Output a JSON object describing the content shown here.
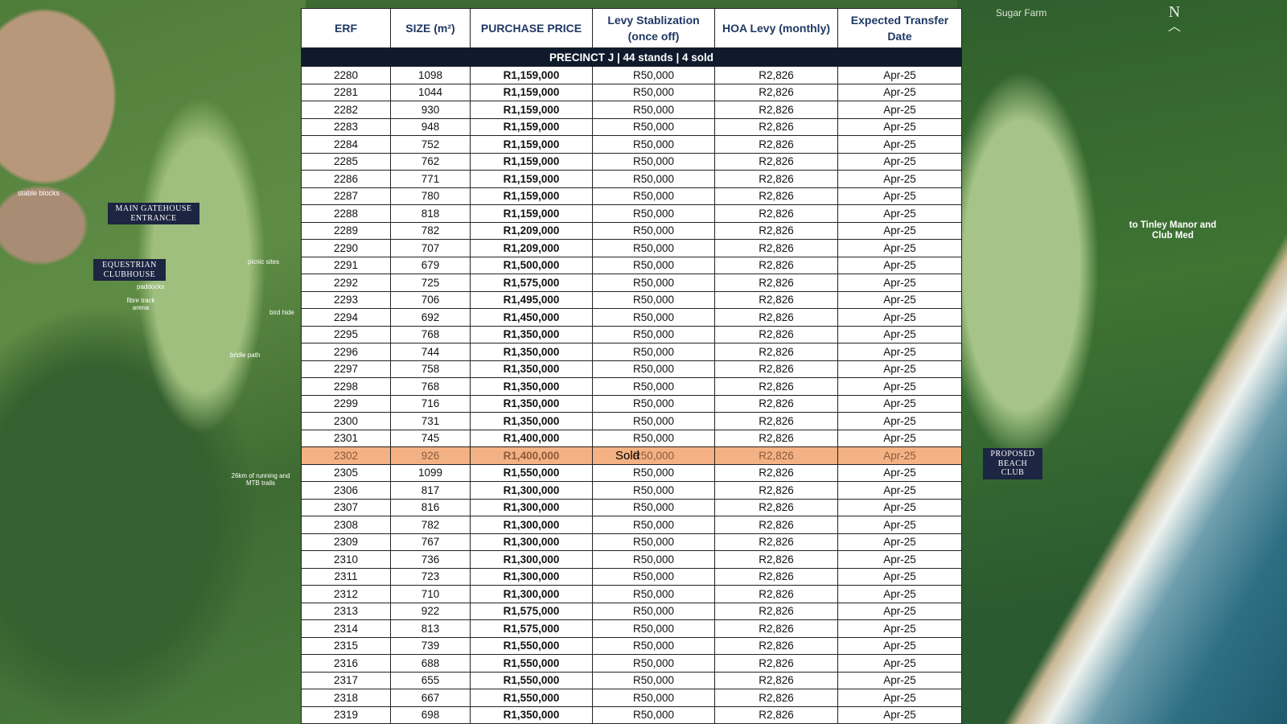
{
  "map": {
    "labels": {
      "sugar_farm": "Sugar Farm",
      "north": "N",
      "main_gatehouse": "MAIN GATEHOUSE ENTRANCE",
      "equestrian_clubhouse": "EQUESTRIAN CLUBHOUSE",
      "tinley_manor": "to Tinley Manor and Club Med",
      "proposed_beach_club": "PROPOSED BEACH CLUB",
      "stable_blocks": "stable blocks",
      "paddocks": "paddocks",
      "fibre_track_arena": "fibre track arena",
      "picnic_sites": "picnic sites",
      "bird_hide": "bird hide",
      "trails": "26km of running and MTB trails",
      "bridle_path": "bridle path"
    }
  },
  "table": {
    "headers": [
      "ERF",
      "SIZE (m²)",
      "PURCHASE PRICE",
      "Levy Stablization (once off)",
      "HOA Levy (monthly)",
      "Expected Transfer Date"
    ],
    "precinct_label": "PRECINCT J | 44 stands | 4 sold",
    "sold_label": "Sold",
    "rows": [
      {
        "erf": "2280",
        "size": "1098",
        "price": "R1,159,000",
        "levy": "R50,000",
        "hoa": "R2,826",
        "date": "Apr-25",
        "sold": false
      },
      {
        "erf": "2281",
        "size": "1044",
        "price": "R1,159,000",
        "levy": "R50,000",
        "hoa": "R2,826",
        "date": "Apr-25",
        "sold": false
      },
      {
        "erf": "2282",
        "size": "930",
        "price": "R1,159,000",
        "levy": "R50,000",
        "hoa": "R2,826",
        "date": "Apr-25",
        "sold": false
      },
      {
        "erf": "2283",
        "size": "948",
        "price": "R1,159,000",
        "levy": "R50,000",
        "hoa": "R2,826",
        "date": "Apr-25",
        "sold": false
      },
      {
        "erf": "2284",
        "size": "752",
        "price": "R1,159,000",
        "levy": "R50,000",
        "hoa": "R2,826",
        "date": "Apr-25",
        "sold": false
      },
      {
        "erf": "2285",
        "size": "762",
        "price": "R1,159,000",
        "levy": "R50,000",
        "hoa": "R2,826",
        "date": "Apr-25",
        "sold": false
      },
      {
        "erf": "2286",
        "size": "771",
        "price": "R1,159,000",
        "levy": "R50,000",
        "hoa": "R2,826",
        "date": "Apr-25",
        "sold": false
      },
      {
        "erf": "2287",
        "size": "780",
        "price": "R1,159,000",
        "levy": "R50,000",
        "hoa": "R2,826",
        "date": "Apr-25",
        "sold": false
      },
      {
        "erf": "2288",
        "size": "818",
        "price": "R1,159,000",
        "levy": "R50,000",
        "hoa": "R2,826",
        "date": "Apr-25",
        "sold": false
      },
      {
        "erf": "2289",
        "size": "782",
        "price": "R1,209,000",
        "levy": "R50,000",
        "hoa": "R2,826",
        "date": "Apr-25",
        "sold": false
      },
      {
        "erf": "2290",
        "size": "707",
        "price": "R1,209,000",
        "levy": "R50,000",
        "hoa": "R2,826",
        "date": "Apr-25",
        "sold": false
      },
      {
        "erf": "2291",
        "size": "679",
        "price": "R1,500,000",
        "levy": "R50,000",
        "hoa": "R2,826",
        "date": "Apr-25",
        "sold": false
      },
      {
        "erf": "2292",
        "size": "725",
        "price": "R1,575,000",
        "levy": "R50,000",
        "hoa": "R2,826",
        "date": "Apr-25",
        "sold": false
      },
      {
        "erf": "2293",
        "size": "706",
        "price": "R1,495,000",
        "levy": "R50,000",
        "hoa": "R2,826",
        "date": "Apr-25",
        "sold": false
      },
      {
        "erf": "2294",
        "size": "692",
        "price": "R1,450,000",
        "levy": "R50,000",
        "hoa": "R2,826",
        "date": "Apr-25",
        "sold": false
      },
      {
        "erf": "2295",
        "size": "768",
        "price": "R1,350,000",
        "levy": "R50,000",
        "hoa": "R2,826",
        "date": "Apr-25",
        "sold": false
      },
      {
        "erf": "2296",
        "size": "744",
        "price": "R1,350,000",
        "levy": "R50,000",
        "hoa": "R2,826",
        "date": "Apr-25",
        "sold": false
      },
      {
        "erf": "2297",
        "size": "758",
        "price": "R1,350,000",
        "levy": "R50,000",
        "hoa": "R2,826",
        "date": "Apr-25",
        "sold": false
      },
      {
        "erf": "2298",
        "size": "768",
        "price": "R1,350,000",
        "levy": "R50,000",
        "hoa": "R2,826",
        "date": "Apr-25",
        "sold": false
      },
      {
        "erf": "2299",
        "size": "716",
        "price": "R1,350,000",
        "levy": "R50,000",
        "hoa": "R2,826",
        "date": "Apr-25",
        "sold": false
      },
      {
        "erf": "2300",
        "size": "731",
        "price": "R1,350,000",
        "levy": "R50,000",
        "hoa": "R2,826",
        "date": "Apr-25",
        "sold": false
      },
      {
        "erf": "2301",
        "size": "745",
        "price": "R1,400,000",
        "levy": "R50,000",
        "hoa": "R2,826",
        "date": "Apr-25",
        "sold": false
      },
      {
        "erf": "2302",
        "size": "926",
        "price": "R1,400,000",
        "levy": "R50,000",
        "hoa": "R2,826",
        "date": "Apr-25",
        "sold": true
      },
      {
        "erf": "2305",
        "size": "1099",
        "price": "R1,550,000",
        "levy": "R50,000",
        "hoa": "R2,826",
        "date": "Apr-25",
        "sold": false
      },
      {
        "erf": "2306",
        "size": "817",
        "price": "R1,300,000",
        "levy": "R50,000",
        "hoa": "R2,826",
        "date": "Apr-25",
        "sold": false
      },
      {
        "erf": "2307",
        "size": "816",
        "price": "R1,300,000",
        "levy": "R50,000",
        "hoa": "R2,826",
        "date": "Apr-25",
        "sold": false
      },
      {
        "erf": "2308",
        "size": "782",
        "price": "R1,300,000",
        "levy": "R50,000",
        "hoa": "R2,826",
        "date": "Apr-25",
        "sold": false
      },
      {
        "erf": "2309",
        "size": "767",
        "price": "R1,300,000",
        "levy": "R50,000",
        "hoa": "R2,826",
        "date": "Apr-25",
        "sold": false
      },
      {
        "erf": "2310",
        "size": "736",
        "price": "R1,300,000",
        "levy": "R50,000",
        "hoa": "R2,826",
        "date": "Apr-25",
        "sold": false
      },
      {
        "erf": "2311",
        "size": "723",
        "price": "R1,300,000",
        "levy": "R50,000",
        "hoa": "R2,826",
        "date": "Apr-25",
        "sold": false
      },
      {
        "erf": "2312",
        "size": "710",
        "price": "R1,300,000",
        "levy": "R50,000",
        "hoa": "R2,826",
        "date": "Apr-25",
        "sold": false
      },
      {
        "erf": "2313",
        "size": "922",
        "price": "R1,575,000",
        "levy": "R50,000",
        "hoa": "R2,826",
        "date": "Apr-25",
        "sold": false
      },
      {
        "erf": "2314",
        "size": "813",
        "price": "R1,575,000",
        "levy": "R50,000",
        "hoa": "R2,826",
        "date": "Apr-25",
        "sold": false
      },
      {
        "erf": "2315",
        "size": "739",
        "price": "R1,550,000",
        "levy": "R50,000",
        "hoa": "R2,826",
        "date": "Apr-25",
        "sold": false
      },
      {
        "erf": "2316",
        "size": "688",
        "price": "R1,550,000",
        "levy": "R50,000",
        "hoa": "R2,826",
        "date": "Apr-25",
        "sold": false
      },
      {
        "erf": "2317",
        "size": "655",
        "price": "R1,550,000",
        "levy": "R50,000",
        "hoa": "R2,826",
        "date": "Apr-25",
        "sold": false
      },
      {
        "erf": "2318",
        "size": "667",
        "price": "R1,550,000",
        "levy": "R50,000",
        "hoa": "R2,826",
        "date": "Apr-25",
        "sold": false
      },
      {
        "erf": "2319",
        "size": "698",
        "price": "R1,350,000",
        "levy": "R50,000",
        "hoa": "R2,826",
        "date": "Apr-25",
        "sold": false
      }
    ]
  },
  "colors": {
    "precinct_bar": "#0f1a2c",
    "header_text": "#1f3864",
    "sold_highlight": "#f4b183"
  }
}
